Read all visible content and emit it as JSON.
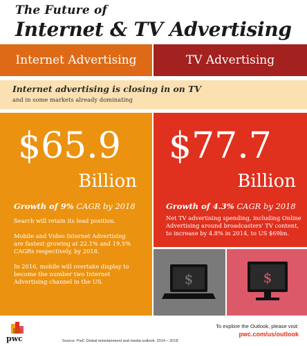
{
  "header": {
    "title_line1": "The Future of",
    "title_line2": "Internet & TV Advertising"
  },
  "tabs": {
    "internet": "Internet Advertising",
    "tv": "TV Advertising"
  },
  "banner": {
    "headline": "Internet advertising is closing in on TV",
    "subline": "and in some markets already dominating"
  },
  "internet": {
    "amount": "$65.9",
    "unit": "Billion",
    "growth_prefix": "Growth of 9%",
    "growth_suffix": "CAGR by 2018",
    "paragraphs": [
      "Search will retain its lead position.",
      "Mobile and Video Internet Advertising are fastest growing at 22.1% and 19.5% CAGRs respectively, by 2018.",
      "In 2016, mobile will overtake display to become the number two Internet Advertising channel in the US."
    ]
  },
  "tv": {
    "amount": "$77.7",
    "unit": "Billion",
    "growth_prefix": "Growth of 4.3%",
    "growth_suffix": "CAGR by 2018",
    "paragraphs": [
      "Net TV advertising spending, including Online Advertising around broadcasters' TV content, to increase by 4.8% in 2014, to US $69bn."
    ]
  },
  "icons": {
    "laptop": "laptop-dollar-icon",
    "tv": "tv-dollar-icon",
    "dollar_glyph": "$"
  },
  "footer": {
    "brand": "pwc",
    "source": "Source: PwC Global entertainment and media outlook: 2014 – 2018",
    "explore_text": "To explore the Outlook, please visit:",
    "url": "pwc.com/us/outlook"
  },
  "colors": {
    "internet_orange": "#de6a17",
    "panel_orange": "#eb9210",
    "tv_red": "#a3211f",
    "panel_red": "#e0301e",
    "banner_cream": "#fbe1b2",
    "gray_box": "#7a7a7a",
    "pink_box": "#db5969"
  }
}
